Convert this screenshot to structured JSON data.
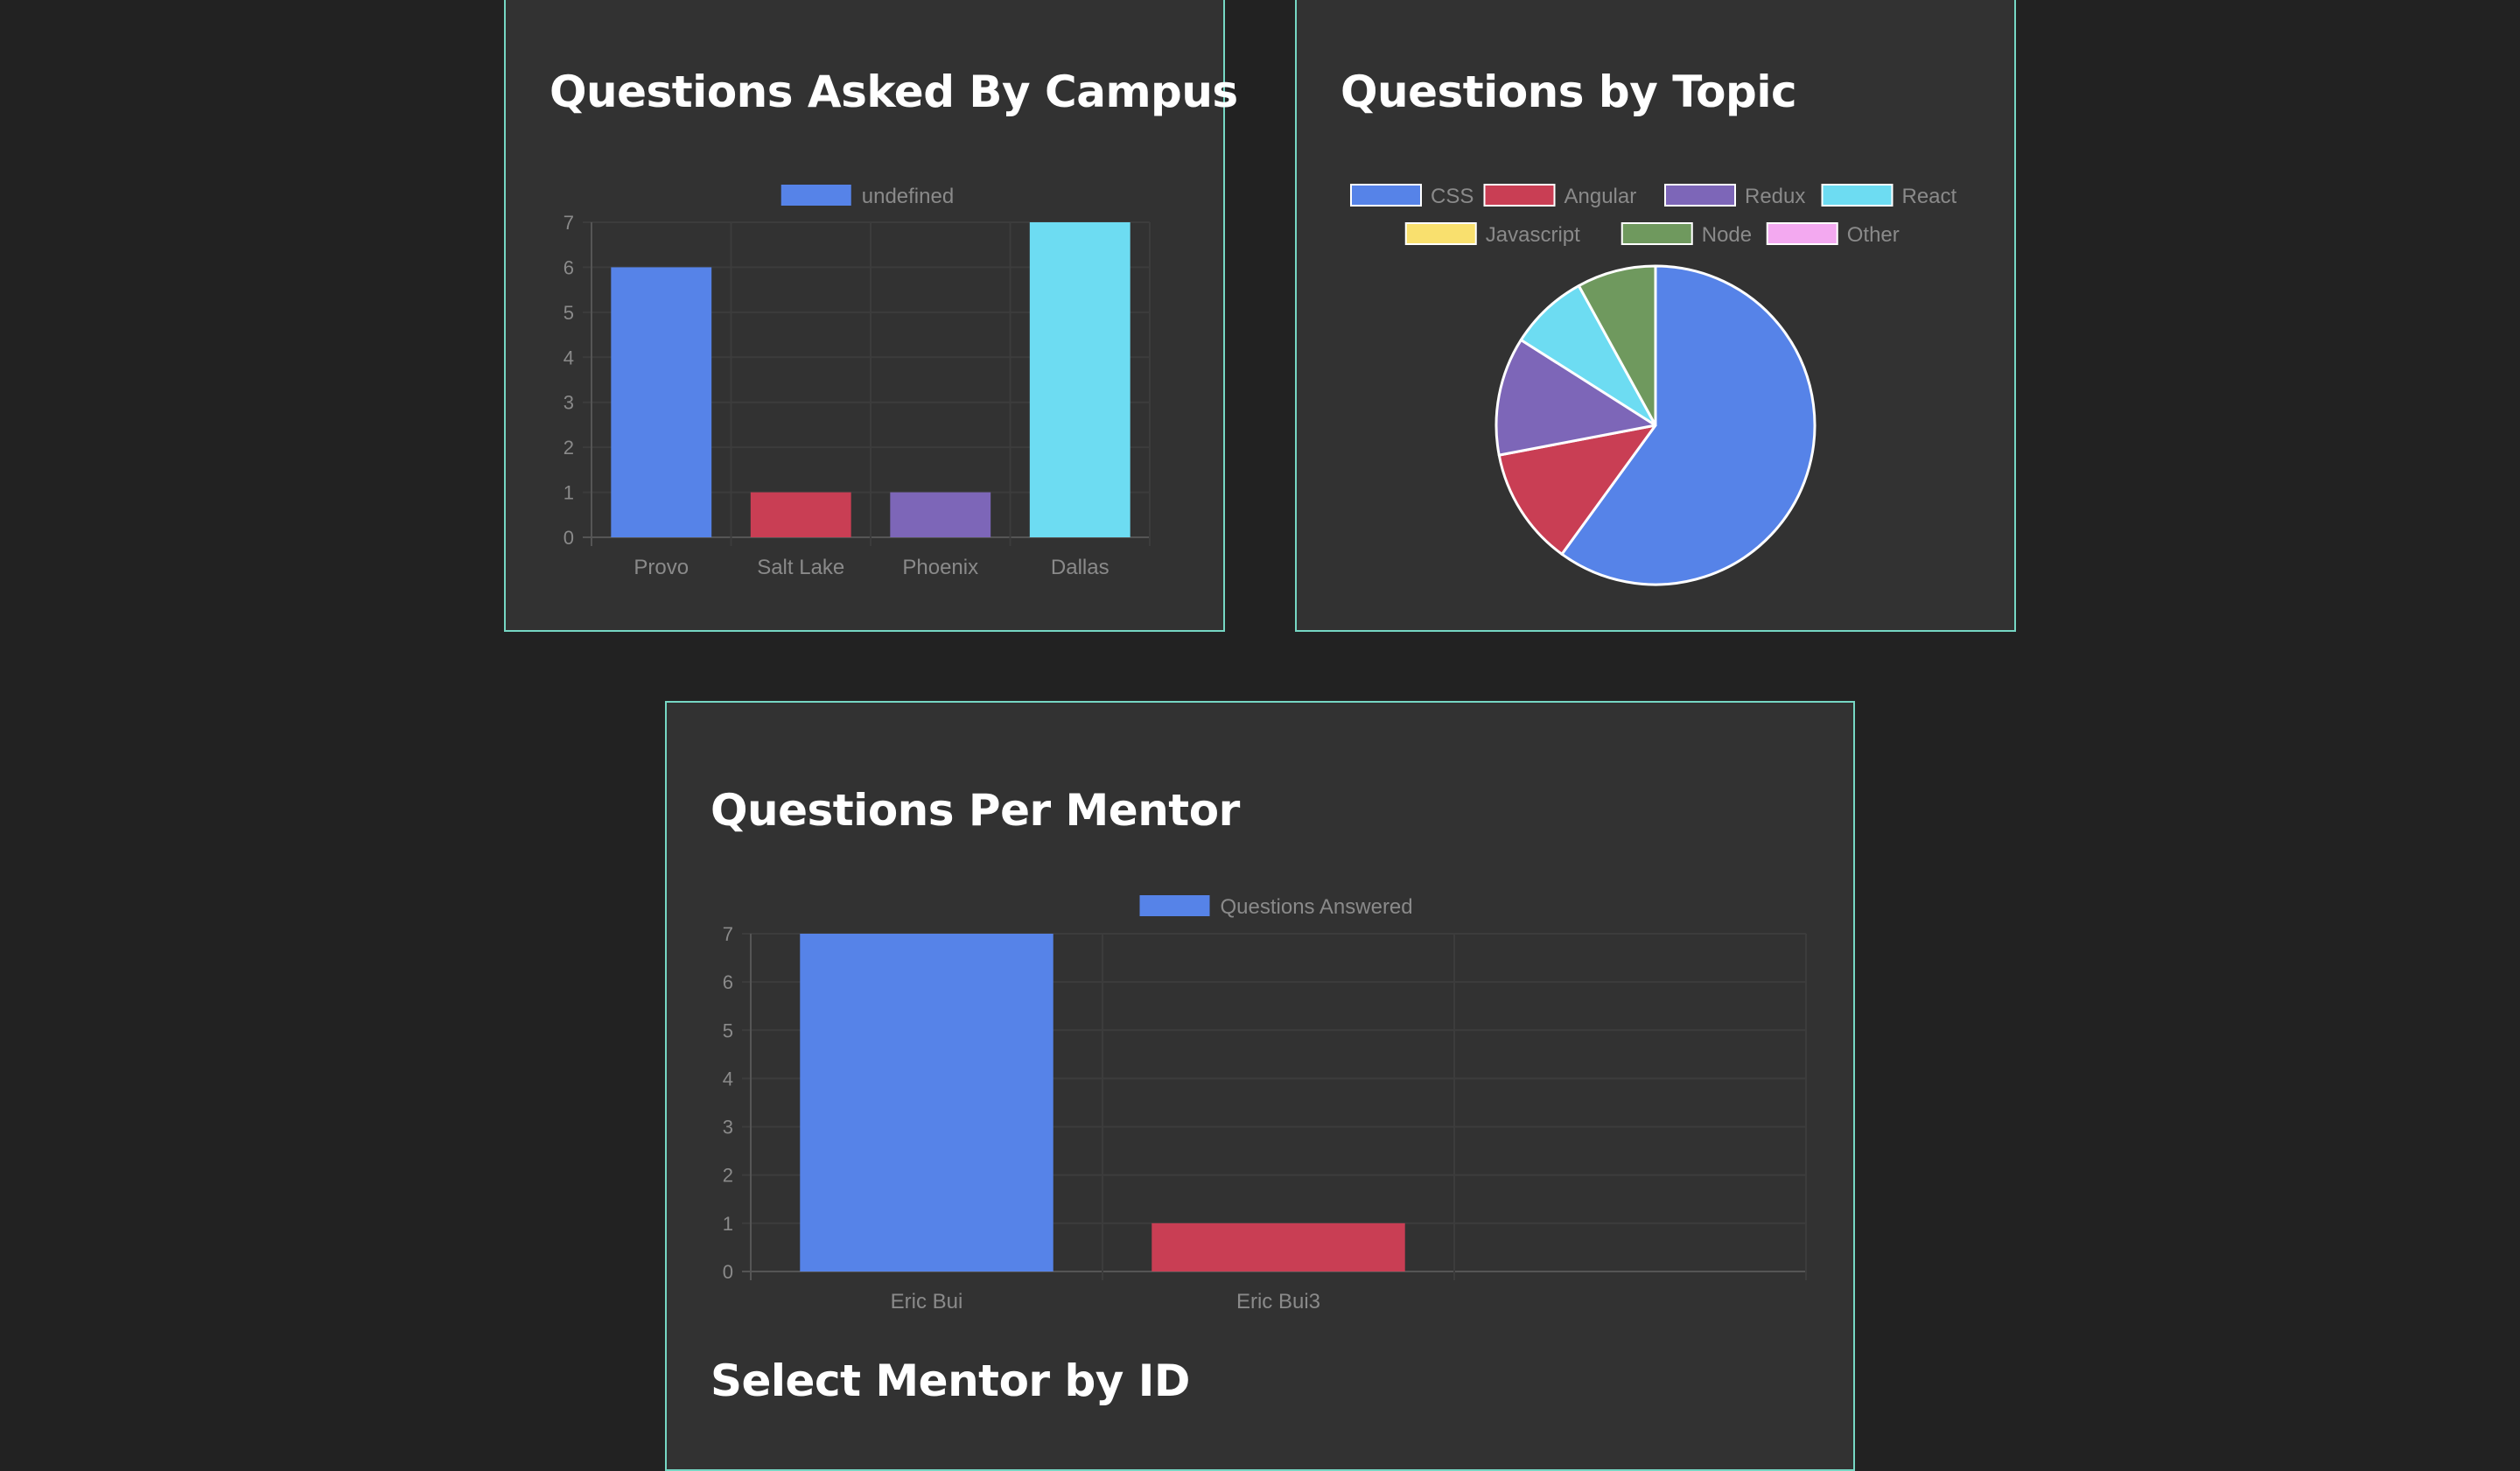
{
  "cards": {
    "campus": {
      "title": "Questions Asked By Campus",
      "chart_data": {
        "type": "bar",
        "title": "Questions Asked By Campus",
        "legend": [
          {
            "label": "undefined",
            "color": "#5683e8"
          }
        ],
        "legend_position": "top",
        "categories": [
          "Provo",
          "Salt Lake",
          "Phoenix",
          "Dallas"
        ],
        "series": [
          {
            "name": "undefined",
            "values": [
              6,
              1,
              1,
              7
            ]
          }
        ],
        "colors": [
          "#5683e8",
          "#c93e54",
          "#7d66b8",
          "#6ddcf2"
        ],
        "ylim": [
          0,
          7
        ],
        "yticks": [
          "0",
          "1",
          "2",
          "3",
          "4",
          "5",
          "6",
          "7"
        ],
        "grid": true
      }
    },
    "topic": {
      "title": "Questions by Topic",
      "chart_data": {
        "type": "pie",
        "title": "Questions by Topic",
        "legend_position": "top",
        "labels": [
          "CSS",
          "Angular",
          "Redux",
          "React",
          "Javascript",
          "Node",
          "Other"
        ],
        "values": [
          15,
          3,
          3,
          2,
          0,
          2,
          0
        ],
        "colors": [
          "#5683e8",
          "#c93e54",
          "#7d66b8",
          "#6ddcf2",
          "#f9e06e",
          "#6f995e",
          "#f3a9f0"
        ],
        "border_color": "#ffffff"
      }
    },
    "mentor": {
      "title": "Questions Per Mentor",
      "select_heading": "Select Mentor by ID",
      "chart_data": {
        "type": "bar",
        "title": "Questions Per Mentor",
        "legend": [
          {
            "label": "Questions Answered",
            "color": "#5683e8"
          }
        ],
        "legend_position": "top",
        "categories": [
          "Eric Bui",
          "Eric Bui3",
          ""
        ],
        "series": [
          {
            "name": "Questions Answered",
            "values": [
              7,
              1,
              0
            ]
          }
        ],
        "colors": [
          "#5683e8",
          "#c93e54",
          "#7d66b8"
        ],
        "ylim": [
          0,
          7
        ],
        "yticks": [
          "0",
          "1",
          "2",
          "3",
          "4",
          "5",
          "6",
          "7"
        ],
        "grid": true
      }
    }
  }
}
